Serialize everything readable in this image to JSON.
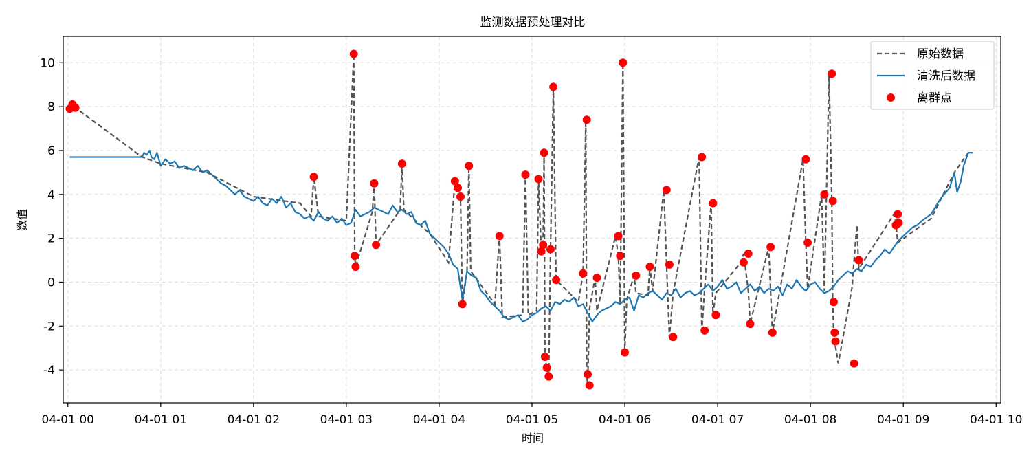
{
  "chart_data": {
    "type": "line",
    "title": "监测数据预处理对比",
    "xlabel": "时间",
    "ylabel": "数值",
    "xlim": [
      -0.05,
      10.05
    ],
    "ylim": [
      -5.5,
      11.2
    ],
    "x_ticks": [
      {
        "value": 0,
        "label": "04-01 00"
      },
      {
        "value": 1,
        "label": "04-01 01"
      },
      {
        "value": 2,
        "label": "04-01 02"
      },
      {
        "value": 3,
        "label": "04-01 03"
      },
      {
        "value": 4,
        "label": "04-01 04"
      },
      {
        "value": 5,
        "label": "04-01 05"
      },
      {
        "value": 6,
        "label": "04-01 06"
      },
      {
        "value": 7,
        "label": "04-01 07"
      },
      {
        "value": 8,
        "label": "04-01 08"
      },
      {
        "value": 9,
        "label": "04-01 09"
      },
      {
        "value": 10,
        "label": "04-01 10"
      }
    ],
    "y_ticks": [
      {
        "value": -4,
        "label": "-4"
      },
      {
        "value": -2,
        "label": "-2"
      },
      {
        "value": 0,
        "label": "0"
      },
      {
        "value": 2,
        "label": "2"
      },
      {
        "value": 4,
        "label": "4"
      },
      {
        "value": 6,
        "label": "6"
      },
      {
        "value": 8,
        "label": "8"
      },
      {
        "value": 10,
        "label": "10"
      }
    ],
    "grid": true,
    "legend_position": "top-right",
    "series": [
      {
        "name": "原始数据",
        "style": "dashed",
        "color": "#555555",
        "x": [
          0.02,
          0.05,
          0.08,
          0.8,
          1.0,
          1.5,
          2.0,
          2.5,
          2.62,
          2.65,
          2.7,
          3.0,
          3.08,
          3.09,
          3.1,
          3.28,
          3.3,
          3.32,
          3.58,
          3.6,
          3.62,
          3.9,
          4.1,
          4.17,
          4.2,
          4.23,
          4.25,
          4.3,
          4.32,
          4.34,
          4.6,
          4.65,
          4.68,
          4.9,
          4.93,
          4.96,
          5.05,
          5.07,
          5.1,
          5.12,
          5.13,
          5.14,
          5.16,
          5.18,
          5.2,
          5.23,
          5.26,
          5.5,
          5.55,
          5.58,
          5.59,
          5.6,
          5.62,
          5.68,
          5.7,
          5.9,
          5.93,
          5.95,
          5.98,
          6.0,
          6.02,
          6.1,
          6.12,
          6.25,
          6.27,
          6.3,
          6.42,
          6.45,
          6.48,
          6.52,
          6.8,
          6.83,
          6.86,
          6.93,
          6.95,
          6.98,
          7.25,
          7.28,
          7.33,
          7.35,
          7.55,
          7.57,
          7.59,
          7.92,
          7.95,
          7.97,
          8.12,
          8.15,
          8.2,
          8.23,
          8.24,
          8.25,
          8.26,
          8.3,
          8.45,
          8.47,
          8.5,
          8.52,
          8.9,
          8.92,
          8.94,
          9.3,
          9.55,
          9.7,
          9.75
        ],
        "values": [
          7.9,
          8.1,
          7.95,
          5.7,
          5.4,
          5.0,
          3.9,
          3.6,
          3.0,
          4.8,
          3.0,
          2.8,
          10.4,
          1.2,
          0.7,
          3.2,
          4.5,
          1.7,
          3.3,
          5.4,
          3.3,
          2.2,
          0.9,
          4.6,
          4.3,
          3.9,
          -1.0,
          0.5,
          5.3,
          0.5,
          -1.0,
          2.1,
          -1.6,
          -1.5,
          4.9,
          -1.5,
          -1.3,
          4.7,
          1.4,
          1.7,
          5.9,
          -3.4,
          -3.9,
          -4.3,
          1.5,
          8.9,
          0.1,
          -0.9,
          0.4,
          7.4,
          -4.2,
          -4.7,
          -1.2,
          0.2,
          -1.3,
          2.1,
          1.2,
          -1.0,
          10.0,
          -3.2,
          -0.8,
          0.3,
          -0.5,
          -0.6,
          0.7,
          -0.4,
          4.2,
          0.8,
          -2.5,
          -0.5,
          5.7,
          -2.2,
          -0.3,
          3.6,
          -1.5,
          -0.5,
          0.9,
          1.3,
          -0.4,
          -1.9,
          1.6,
          -0.4,
          -2.3,
          5.6,
          1.8,
          -0.3,
          4.0,
          -0.4,
          9.5,
          3.7,
          -0.9,
          -2.3,
          -2.7,
          -3.7,
          -0.2,
          1.0,
          2.6,
          0.6,
          3.1,
          2.7,
          1.8,
          2.9,
          5.0,
          5.9,
          5.9
        ]
      },
      {
        "name": "清洗后数据",
        "style": "solid",
        "color": "#1f77b4",
        "x": [
          0.02,
          0.1,
          0.2,
          0.4,
          0.6,
          0.8,
          0.82,
          0.85,
          0.88,
          0.9,
          0.93,
          0.96,
          1.0,
          1.05,
          1.1,
          1.15,
          1.2,
          1.25,
          1.3,
          1.35,
          1.4,
          1.45,
          1.5,
          1.55,
          1.6,
          1.65,
          1.7,
          1.75,
          1.8,
          1.85,
          1.9,
          1.95,
          2.0,
          2.05,
          2.1,
          2.15,
          2.2,
          2.25,
          2.3,
          2.35,
          2.4,
          2.45,
          2.5,
          2.55,
          2.6,
          2.65,
          2.7,
          2.75,
          2.8,
          2.85,
          2.9,
          2.95,
          3.0,
          3.05,
          3.1,
          3.15,
          3.2,
          3.25,
          3.3,
          3.35,
          3.4,
          3.45,
          3.5,
          3.55,
          3.6,
          3.65,
          3.7,
          3.75,
          3.8,
          3.85,
          3.9,
          3.95,
          4.0,
          4.05,
          4.1,
          4.15,
          4.2,
          4.25,
          4.3,
          4.35,
          4.4,
          4.45,
          4.5,
          4.55,
          4.6,
          4.65,
          4.7,
          4.75,
          4.8,
          4.85,
          4.9,
          4.95,
          5.0,
          5.05,
          5.1,
          5.15,
          5.2,
          5.25,
          5.3,
          5.35,
          5.4,
          5.45,
          5.5,
          5.55,
          5.6,
          5.65,
          5.7,
          5.75,
          5.8,
          5.85,
          5.9,
          5.95,
          6.0,
          6.05,
          6.1,
          6.15,
          6.2,
          6.25,
          6.3,
          6.35,
          6.4,
          6.45,
          6.5,
          6.55,
          6.6,
          6.65,
          6.7,
          6.75,
          6.8,
          6.85,
          6.9,
          6.95,
          7.0,
          7.05,
          7.1,
          7.15,
          7.2,
          7.25,
          7.3,
          7.35,
          7.4,
          7.45,
          7.5,
          7.55,
          7.6,
          7.65,
          7.7,
          7.75,
          7.8,
          7.85,
          7.9,
          7.95,
          8.0,
          8.05,
          8.1,
          8.15,
          8.2,
          8.25,
          8.3,
          8.35,
          8.4,
          8.45,
          8.5,
          8.55,
          8.6,
          8.65,
          8.7,
          8.75,
          8.8,
          8.85,
          8.9,
          8.95,
          9.0,
          9.05,
          9.1,
          9.15,
          9.2,
          9.3,
          9.4,
          9.5,
          9.55,
          9.58,
          9.62,
          9.65,
          9.7,
          9.75
        ],
        "values": [
          5.7,
          5.7,
          5.7,
          5.7,
          5.7,
          5.7,
          5.9,
          5.8,
          6.0,
          5.7,
          5.6,
          5.9,
          5.3,
          5.6,
          5.4,
          5.5,
          5.2,
          5.3,
          5.2,
          5.1,
          5.3,
          5.0,
          5.1,
          4.9,
          4.7,
          4.5,
          4.4,
          4.2,
          4.0,
          4.2,
          3.9,
          3.8,
          3.7,
          3.9,
          3.6,
          3.5,
          3.8,
          3.6,
          3.9,
          3.4,
          3.6,
          3.2,
          3.1,
          2.9,
          3.0,
          2.8,
          3.2,
          2.9,
          2.8,
          3.0,
          2.7,
          2.9,
          2.6,
          2.7,
          3.3,
          3.0,
          3.1,
          3.2,
          3.4,
          3.3,
          3.2,
          3.1,
          3.5,
          3.2,
          3.3,
          3.1,
          3.2,
          2.7,
          2.6,
          2.8,
          2.2,
          2.0,
          1.8,
          1.6,
          1.3,
          0.8,
          0.6,
          -0.8,
          0.5,
          0.3,
          0.2,
          -0.4,
          -0.6,
          -0.9,
          -1.1,
          -1.3,
          -1.6,
          -1.7,
          -1.6,
          -1.5,
          -1.8,
          -1.7,
          -1.5,
          -1.4,
          -1.2,
          -1.1,
          -1.3,
          -0.9,
          -1.0,
          -0.8,
          -0.9,
          -0.7,
          -1.1,
          -1.0,
          -1.4,
          -1.8,
          -1.5,
          -1.3,
          -1.2,
          -1.1,
          -0.9,
          -1.0,
          -0.8,
          -0.7,
          -1.3,
          -0.6,
          -0.7,
          -0.5,
          -0.4,
          -0.6,
          -0.8,
          -0.5,
          -0.6,
          -0.3,
          -0.7,
          -0.5,
          -0.4,
          -0.6,
          -0.5,
          -0.3,
          -0.1,
          -0.4,
          -0.2,
          0.1,
          -0.3,
          -0.2,
          0.0,
          -0.5,
          -0.3,
          -0.1,
          -0.4,
          -0.2,
          -0.5,
          -0.3,
          -0.4,
          -0.2,
          -0.6,
          -0.1,
          -0.3,
          0.1,
          -0.2,
          -0.4,
          -0.1,
          0.0,
          -0.3,
          -0.5,
          -0.4,
          -0.2,
          0.1,
          0.3,
          0.5,
          0.4,
          0.6,
          0.5,
          0.8,
          0.7,
          1.0,
          1.2,
          1.5,
          1.3,
          1.6,
          1.9,
          2.1,
          2.3,
          2.5,
          2.6,
          2.8,
          3.1,
          3.8,
          4.3,
          5.0,
          4.1,
          4.6,
          5.3,
          5.9,
          5.9
        ]
      },
      {
        "name": "离群点",
        "style": "markers",
        "color": "#ff0000",
        "x": [
          0.02,
          0.05,
          0.08,
          2.65,
          3.08,
          3.09,
          3.1,
          3.3,
          3.32,
          3.6,
          4.17,
          4.2,
          4.23,
          4.25,
          4.32,
          4.65,
          4.93,
          5.07,
          5.1,
          5.12,
          5.13,
          5.14,
          5.16,
          5.18,
          5.2,
          5.23,
          5.26,
          5.55,
          5.59,
          5.6,
          5.62,
          5.7,
          5.93,
          5.95,
          5.98,
          6.0,
          6.12,
          6.27,
          6.45,
          6.48,
          6.52,
          6.83,
          6.86,
          6.95,
          6.98,
          7.28,
          7.33,
          7.35,
          7.57,
          7.59,
          7.95,
          7.97,
          8.15,
          8.23,
          8.24,
          8.25,
          8.26,
          8.27,
          8.47,
          8.52,
          8.92,
          8.94,
          8.95
        ],
        "values": [
          7.9,
          8.1,
          7.95,
          4.8,
          10.4,
          1.2,
          0.7,
          4.5,
          1.7,
          5.4,
          4.6,
          4.3,
          3.9,
          -1.0,
          5.3,
          2.1,
          4.9,
          4.7,
          1.4,
          1.7,
          5.9,
          -3.4,
          -3.9,
          -4.3,
          1.5,
          8.9,
          0.1,
          0.4,
          7.4,
          -4.2,
          -4.7,
          0.2,
          2.1,
          1.2,
          10.0,
          -3.2,
          0.3,
          0.7,
          4.2,
          0.8,
          -2.5,
          5.7,
          -2.2,
          3.6,
          -1.5,
          0.9,
          1.3,
          -1.9,
          1.6,
          -2.3,
          5.6,
          1.8,
          4.0,
          9.5,
          3.7,
          -0.9,
          -2.3,
          -2.7,
          -3.7,
          1.0,
          2.6,
          3.1,
          2.7
        ]
      }
    ]
  }
}
